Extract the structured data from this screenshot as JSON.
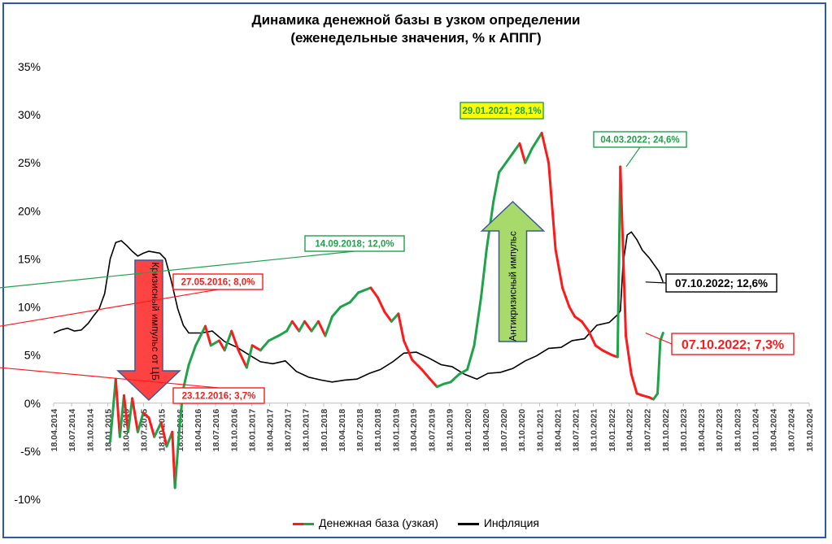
{
  "title_line1": "Динамика денежной базы в узком определении",
  "title_line2": "(еженедельные значения, % к АППГ)",
  "colors": {
    "red": "#ff1a1a",
    "green": "#1fa34a",
    "black": "#000000",
    "frame": "#2a5ba8",
    "arrow_red": "#ff4343",
    "arrow_green": "#a8d96b",
    "callout_yellow": "#ffff00"
  },
  "legend": {
    "money_base": "Денежная база (узкая)",
    "inflation": "Инфляция"
  },
  "arrows": {
    "crisis": "Кризисный импульс от ЦБ",
    "anticrisis": "Антикризисный импульс"
  },
  "callouts": [
    {
      "date": "29.01.2021",
      "value": 28.1,
      "text": "29.01.2021; 28,1%",
      "style": "green-yellow"
    },
    {
      "date": "04.03.2022",
      "value": 24.6,
      "text": "04.03.2022; 24,6%",
      "style": "green"
    },
    {
      "date": "14.09.2018",
      "value": 12.0,
      "text": "14.09.2018; 12,0%",
      "style": "green"
    },
    {
      "date": "27.05.2016",
      "value": 8.0,
      "text": "27.05.2016; 8,0%",
      "style": "red"
    },
    {
      "date": "23.12.2016",
      "value": 3.7,
      "text": "23.12.2016; 3,7%",
      "style": "red"
    },
    {
      "date": "07.10.2022",
      "value": 12.6,
      "text": "07.10.2022; 12,6%",
      "style": "black"
    },
    {
      "date": "07.10.2022",
      "value": 7.3,
      "text": "07.10.2022; 7,3%",
      "style": "red-large"
    }
  ],
  "chart_data": {
    "type": "line",
    "title": "Динамика денежной базы в узком определении (еженедельные значения, % к АППГ)",
    "ylim": [
      -10,
      35
    ],
    "yticks": [
      "-10%",
      "-5%",
      "0%",
      "5%",
      "10%",
      "15%",
      "20%",
      "25%",
      "30%",
      "35%"
    ],
    "yticks_values": [
      -10,
      -5,
      0,
      5,
      10,
      15,
      20,
      25,
      30,
      35
    ],
    "xlim": [
      "2014-04-18",
      "2024-10-18"
    ],
    "xticks": [
      "18.04.2014",
      "18.07.2014",
      "18.10.2014",
      "18.01.2015",
      "18.04.2015",
      "18.07.2015",
      "18.10.2015",
      "18.01.2016",
      "18.04.2016",
      "18.07.2016",
      "18.10.2016",
      "18.01.2017",
      "18.04.2017",
      "18.07.2017",
      "18.10.2017",
      "18.01.2018",
      "18.04.2018",
      "18.07.2018",
      "18.10.2018",
      "18.01.2019",
      "18.04.2019",
      "18.07.2019",
      "18.10.2019",
      "18.01.2020",
      "18.04.2020",
      "18.07.2020",
      "18.10.2020",
      "18.01.2021",
      "18.04.2021",
      "18.07.2021",
      "18.10.2021",
      "18.01.2022",
      "18.04.2022",
      "18.07.2022",
      "18.10.2022",
      "18.01.2023",
      "18.04.2023",
      "18.07.2023",
      "18.10.2023",
      "18.01.2024",
      "18.04.2024",
      "18.07.2024",
      "18.10.2024"
    ],
    "grid": false,
    "legend_position": "bottom",
    "series": [
      {
        "name": "Денежная база (узкая)",
        "color_rule": "green when rising, red when falling",
        "points": [
          [
            "2015-01-30",
            -4.0
          ],
          [
            "2015-02-27",
            2.5
          ],
          [
            "2015-03-20",
            -3.5
          ],
          [
            "2015-04-10",
            0.8
          ],
          [
            "2015-05-01",
            -3.0
          ],
          [
            "2015-05-22",
            0.5
          ],
          [
            "2015-06-19",
            -3.0
          ],
          [
            "2015-07-17",
            -1.0
          ],
          [
            "2015-08-14",
            -1.5
          ],
          [
            "2015-09-11",
            -3.5
          ],
          [
            "2015-10-16",
            -2.0
          ],
          [
            "2015-11-13",
            -4.5
          ],
          [
            "2015-12-11",
            -3.0
          ],
          [
            "2015-12-25",
            -8.8
          ],
          [
            "2016-01-15",
            -3.0
          ],
          [
            "2016-02-05",
            1.5
          ],
          [
            "2016-03-04",
            4.0
          ],
          [
            "2016-04-08",
            6.0
          ],
          [
            "2016-05-27",
            8.0
          ],
          [
            "2016-06-24",
            6.0
          ],
          [
            "2016-08-05",
            6.5
          ],
          [
            "2016-09-02",
            5.5
          ],
          [
            "2016-10-07",
            7.5
          ],
          [
            "2016-11-11",
            5.5
          ],
          [
            "2016-12-23",
            3.7
          ],
          [
            "2017-01-20",
            6.0
          ],
          [
            "2017-03-03",
            5.5
          ],
          [
            "2017-04-14",
            6.5
          ],
          [
            "2017-06-02",
            7.0
          ],
          [
            "2017-07-14",
            7.5
          ],
          [
            "2017-08-11",
            8.5
          ],
          [
            "2017-09-15",
            7.5
          ],
          [
            "2017-10-13",
            8.5
          ],
          [
            "2017-11-17",
            7.5
          ],
          [
            "2017-12-22",
            8.5
          ],
          [
            "2018-01-26",
            7.0
          ],
          [
            "2018-03-02",
            9.0
          ],
          [
            "2018-04-13",
            10.0
          ],
          [
            "2018-06-01",
            10.5
          ],
          [
            "2018-07-13",
            11.5
          ],
          [
            "2018-09-14",
            12.0
          ],
          [
            "2018-10-19",
            11.0
          ],
          [
            "2018-11-23",
            9.5
          ],
          [
            "2018-12-28",
            8.5
          ],
          [
            "2019-02-01",
            9.3
          ],
          [
            "2019-03-01",
            6.5
          ],
          [
            "2019-04-12",
            4.5
          ],
          [
            "2019-05-31",
            3.5
          ],
          [
            "2019-07-12",
            2.5
          ],
          [
            "2019-08-16",
            1.7
          ],
          [
            "2019-09-20",
            2.0
          ],
          [
            "2019-10-25",
            2.2
          ],
          [
            "2019-12-06",
            3.0
          ],
          [
            "2020-01-17",
            3.5
          ],
          [
            "2020-02-21",
            6.0
          ],
          [
            "2020-03-27",
            11.0
          ],
          [
            "2020-04-24",
            16.0
          ],
          [
            "2020-05-29",
            21.0
          ],
          [
            "2020-06-26",
            24.0
          ],
          [
            "2020-07-31",
            25.0
          ],
          [
            "2020-09-04",
            26.0
          ],
          [
            "2020-10-09",
            27.0
          ],
          [
            "2020-11-06",
            25.0
          ],
          [
            "2020-12-11",
            26.5
          ],
          [
            "2021-01-29",
            28.1
          ],
          [
            "2021-03-05",
            25.0
          ],
          [
            "2021-04-09",
            16.0
          ],
          [
            "2021-05-14",
            12.0
          ],
          [
            "2021-06-18",
            10.0
          ],
          [
            "2021-07-16",
            9.0
          ],
          [
            "2021-08-20",
            8.5
          ],
          [
            "2021-09-24",
            7.5
          ],
          [
            "2021-10-29",
            6.0
          ],
          [
            "2021-12-03",
            5.5
          ],
          [
            "2022-01-21",
            5.0
          ],
          [
            "2022-02-18",
            4.8
          ],
          [
            "2022-03-04",
            24.6
          ],
          [
            "2022-04-01",
            7.0
          ],
          [
            "2022-04-29",
            3.0
          ],
          [
            "2022-05-27",
            1.0
          ],
          [
            "2022-06-24",
            0.8
          ],
          [
            "2022-07-29",
            0.6
          ],
          [
            "2022-08-19",
            0.4
          ],
          [
            "2022-09-09",
            1.0
          ],
          [
            "2022-09-23",
            6.5
          ],
          [
            "2022-10-07",
            7.3
          ]
        ]
      },
      {
        "name": "Инфляция",
        "color": "#000000",
        "points": [
          [
            "2014-04-18",
            7.3
          ],
          [
            "2014-05-23",
            7.6
          ],
          [
            "2014-06-27",
            7.8
          ],
          [
            "2014-08-01",
            7.5
          ],
          [
            "2014-09-05",
            7.6
          ],
          [
            "2014-10-10",
            8.3
          ],
          [
            "2014-11-07",
            9.1
          ],
          [
            "2014-12-05",
            9.8
          ],
          [
            "2015-01-02",
            11.4
          ],
          [
            "2015-01-30",
            15.0
          ],
          [
            "2015-02-27",
            16.7
          ],
          [
            "2015-03-27",
            16.9
          ],
          [
            "2015-04-24",
            16.4
          ],
          [
            "2015-05-22",
            15.8
          ],
          [
            "2015-06-19",
            15.3
          ],
          [
            "2015-07-17",
            15.6
          ],
          [
            "2015-08-14",
            15.8
          ],
          [
            "2015-09-11",
            15.7
          ],
          [
            "2015-10-09",
            15.6
          ],
          [
            "2015-11-06",
            15.0
          ],
          [
            "2015-12-04",
            12.9
          ],
          [
            "2016-01-08",
            9.8
          ],
          [
            "2016-02-05",
            8.1
          ],
          [
            "2016-03-04",
            7.3
          ],
          [
            "2016-05-06",
            7.3
          ],
          [
            "2016-07-01",
            7.5
          ],
          [
            "2016-09-02",
            6.4
          ],
          [
            "2016-11-04",
            5.8
          ],
          [
            "2017-01-06",
            5.0
          ],
          [
            "2017-03-03",
            4.3
          ],
          [
            "2017-05-05",
            4.1
          ],
          [
            "2017-07-07",
            4.4
          ],
          [
            "2017-09-01",
            3.3
          ],
          [
            "2017-11-03",
            2.7
          ],
          [
            "2018-01-05",
            2.4
          ],
          [
            "2018-03-02",
            2.2
          ],
          [
            "2018-05-04",
            2.4
          ],
          [
            "2018-07-06",
            2.5
          ],
          [
            "2018-09-07",
            3.1
          ],
          [
            "2018-11-02",
            3.5
          ],
          [
            "2019-01-04",
            4.3
          ],
          [
            "2019-03-01",
            5.2
          ],
          [
            "2019-05-03",
            5.3
          ],
          [
            "2019-07-05",
            4.7
          ],
          [
            "2019-09-06",
            4.0
          ],
          [
            "2019-11-01",
            3.8
          ],
          [
            "2020-01-03",
            3.0
          ],
          [
            "2020-03-06",
            2.5
          ],
          [
            "2020-05-01",
            3.1
          ],
          [
            "2020-07-03",
            3.2
          ],
          [
            "2020-09-04",
            3.6
          ],
          [
            "2020-11-06",
            4.4
          ],
          [
            "2021-01-01",
            4.9
          ],
          [
            "2021-03-05",
            5.7
          ],
          [
            "2021-05-07",
            5.8
          ],
          [
            "2021-07-02",
            6.5
          ],
          [
            "2021-09-03",
            6.7
          ],
          [
            "2021-11-05",
            8.1
          ],
          [
            "2022-01-07",
            8.4
          ],
          [
            "2022-02-18",
            9.2
          ],
          [
            "2022-03-04",
            9.6
          ],
          [
            "2022-03-18",
            14.5
          ],
          [
            "2022-04-08",
            17.5
          ],
          [
            "2022-04-29",
            17.8
          ],
          [
            "2022-05-27",
            17.0
          ],
          [
            "2022-06-24",
            15.9
          ],
          [
            "2022-07-29",
            15.1
          ],
          [
            "2022-08-26",
            14.3
          ],
          [
            "2022-09-16",
            13.7
          ],
          [
            "2022-10-07",
            12.6
          ]
        ]
      }
    ]
  }
}
